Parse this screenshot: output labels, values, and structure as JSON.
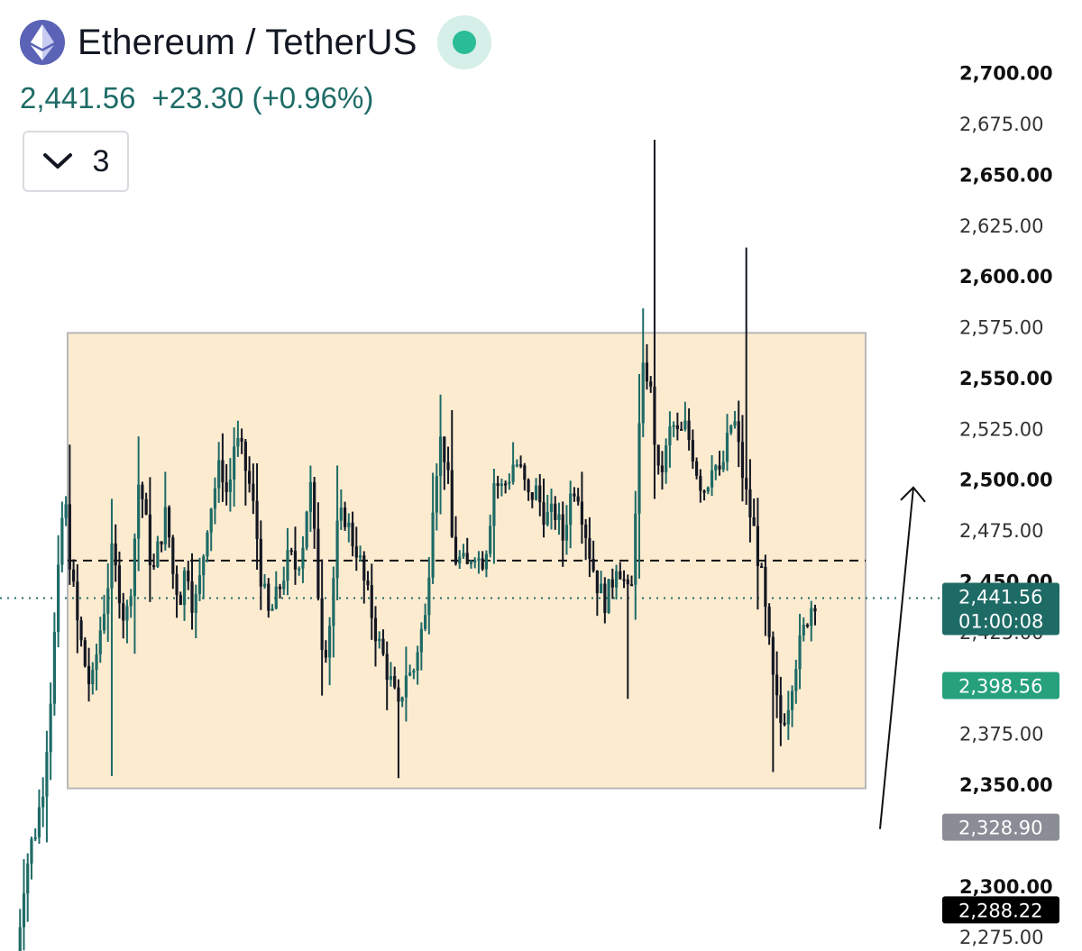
{
  "header": {
    "title": "Ethereum / TetherUS",
    "price": "2,441.56",
    "change": "+23.30",
    "change_pct": "(+0.96%)",
    "indicator_count": "3"
  },
  "icons": {
    "logo": "ethereum-logo-icon",
    "status": "market-open-dot-icon",
    "collapse": "chevron-down-icon"
  },
  "colors": {
    "up": "#1e6b66",
    "down": "#131722",
    "range_box": "#fdebd0",
    "price_label": "#1e6b66",
    "green_label": "#26a17b",
    "gray_label": "#8a8d96",
    "black_label": "#000000"
  },
  "chart_data": {
    "type": "candlestick",
    "y_axis": {
      "range": [
        2268,
        2718
      ],
      "ticks": [
        "2,700.00",
        "2,675.00",
        "2,650.00",
        "2,625.00",
        "2,600.00",
        "2,575.00",
        "2,550.00",
        "2,525.00",
        "2,500.00",
        "2,475.00",
        "2,450.00",
        "2,425.00",
        "2,375.00",
        "2,350.00",
        "2,300.00",
        "2,275.00"
      ],
      "tick_values": [
        2700,
        2675,
        2650,
        2625,
        2600,
        2575,
        2550,
        2525,
        2500,
        2475,
        2450,
        2425,
        2375,
        2350,
        2300,
        2275
      ],
      "bold_ticks": [
        2700,
        2650,
        2600,
        2550,
        2500,
        2450,
        2350,
        2300
      ]
    },
    "price_labels": [
      {
        "value": 2441.56,
        "text": "2,441.56",
        "subtext": "01:00:08",
        "color": "#1e6b66"
      },
      {
        "value": 2398.56,
        "text": "2,398.56",
        "color": "#26a17b"
      },
      {
        "value": 2328.9,
        "text": "2,328.90",
        "color": "#8a8d96"
      },
      {
        "value": 2288.22,
        "text": "2,288.22",
        "color": "#000000"
      }
    ],
    "range_box": {
      "high": 2572,
      "low": 2348
    },
    "dashed_level": 2460,
    "current_price": 2441.56,
    "arrow": {
      "from": 2328,
      "to": 2496
    },
    "path": [
      2262,
      2300,
      2318,
      2330,
      2352,
      2392,
      2443,
      2495,
      2455,
      2428,
      2410,
      2395,
      2420,
      2440,
      2462,
      2448,
      2428,
      2455,
      2502,
      2478,
      2452,
      2470,
      2484,
      2452,
      2442,
      2460,
      2435,
      2452,
      2480,
      2495,
      2508,
      2490,
      2520,
      2512,
      2500,
      2480,
      2448,
      2432,
      2440,
      2452,
      2462,
      2456,
      2470,
      2500,
      2455,
      2412,
      2432,
      2474,
      2484,
      2472,
      2465,
      2448,
      2435,
      2420,
      2410,
      2398,
      2385,
      2406,
      2402,
      2422,
      2432,
      2490,
      2520,
      2510,
      2462,
      2460,
      2455,
      2468,
      2458,
      2470,
      2500,
      2495,
      2500,
      2510,
      2502,
      2490,
      2495,
      2486,
      2480,
      2484,
      2470,
      2490,
      2500,
      2482,
      2464,
      2450,
      2440,
      2445,
      2462,
      2450,
      2436,
      2512,
      2560,
      2540,
      2500,
      2510,
      2528,
      2520,
      2525,
      2515,
      2500,
      2495,
      2512,
      2500,
      2515,
      2532,
      2510,
      2490,
      2475,
      2455,
      2425,
      2395,
      2380,
      2390,
      2410,
      2420,
      2435,
      2442
    ]
  }
}
